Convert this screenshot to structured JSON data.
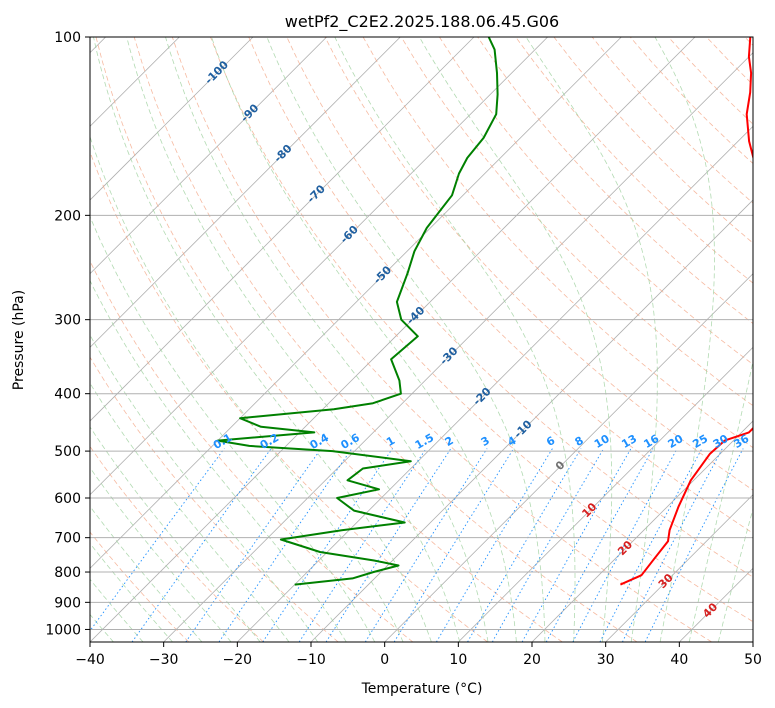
{
  "chart_data": {
    "type": "line",
    "subtype": "skew-t log-p",
    "title": "wetPf2_C2E2.2025.188.06.45.G06",
    "xlabel": "Temperature (°C)",
    "ylabel": "Pressure (hPa)",
    "xlim": [
      -40,
      50
    ],
    "ylim": [
      1050,
      100
    ],
    "y_scale": "log",
    "grid": true,
    "x_ticks": [
      -40,
      -30,
      -20,
      -10,
      0,
      10,
      20,
      30,
      40,
      50
    ],
    "y_ticks": [
      100,
      200,
      300,
      400,
      500,
      600,
      700,
      800,
      900,
      1000
    ],
    "isotherm_labels": [
      "-100",
      "-90",
      "-80",
      "-70",
      "-60",
      "-50",
      "-40",
      "-30",
      "-20",
      "-10",
      "0",
      "10",
      "20",
      "30",
      "40"
    ],
    "mixing_ratio_labels": [
      "0.1",
      "0.2",
      "0.4",
      "0.6",
      "1",
      "1.5",
      "2",
      "3",
      "4",
      "6",
      "8",
      "10",
      "13",
      "16",
      "20",
      "25",
      "30",
      "36"
    ],
    "series": [
      {
        "role": "temperature",
        "color": "#ff0000",
        "points": [
          [
            24.2,
            840
          ],
          [
            25.8,
            810
          ],
          [
            25.3,
            760
          ],
          [
            24.8,
            710
          ],
          [
            23.5,
            680
          ],
          [
            21.5,
            620
          ],
          [
            19.6,
            560
          ],
          [
            18.6,
            505
          ],
          [
            18.8,
            480
          ],
          [
            21.0,
            465
          ],
          [
            21.0,
            440
          ],
          [
            19.5,
            410
          ],
          [
            16.8,
            380
          ],
          [
            13.5,
            350
          ],
          [
            9.5,
            315
          ],
          [
            6.0,
            290
          ],
          [
            1.5,
            260
          ],
          [
            -3.5,
            225
          ],
          [
            -8.0,
            195
          ],
          [
            -13.0,
            170
          ],
          [
            -18.5,
            150
          ],
          [
            -22.5,
            135
          ],
          [
            -25.0,
            124
          ],
          [
            -27.5,
            115
          ],
          [
            -30.0,
            108
          ],
          [
            -32.5,
            100
          ]
        ]
      },
      {
        "role": "dewpoint",
        "color": "#008000",
        "points": [
          [
            -20.0,
            840
          ],
          [
            -13.0,
            820
          ],
          [
            -11.0,
            800
          ],
          [
            -8.5,
            780
          ],
          [
            -12.5,
            765
          ],
          [
            -21.0,
            740
          ],
          [
            -28.0,
            705
          ],
          [
            -21.0,
            680
          ],
          [
            -13.5,
            660
          ],
          [
            -22.0,
            630
          ],
          [
            -26.0,
            600
          ],
          [
            -21.5,
            580
          ],
          [
            -27.0,
            560
          ],
          [
            -26.5,
            535
          ],
          [
            -21.0,
            520
          ],
          [
            -33.0,
            500
          ],
          [
            -45.0,
            490
          ],
          [
            -50.0,
            480
          ],
          [
            -38.0,
            465
          ],
          [
            -46.0,
            455
          ],
          [
            -50.0,
            440
          ],
          [
            -38.5,
            425
          ],
          [
            -34.0,
            415
          ],
          [
            -31.5,
            400
          ],
          [
            -33.5,
            380
          ],
          [
            -37.5,
            350
          ],
          [
            -37.0,
            320
          ],
          [
            -41.5,
            300
          ],
          [
            -44.5,
            280
          ],
          [
            -47.0,
            250
          ],
          [
            -49.0,
            230
          ],
          [
            -50.5,
            210
          ],
          [
            -51.5,
            185
          ],
          [
            -53.5,
            170
          ],
          [
            -54.5,
            160
          ],
          [
            -55.0,
            148
          ],
          [
            -56.5,
            135
          ],
          [
            -59.0,
            125
          ],
          [
            -62.0,
            115
          ],
          [
            -65.5,
            105
          ],
          [
            -68.0,
            100
          ]
        ]
      }
    ]
  }
}
